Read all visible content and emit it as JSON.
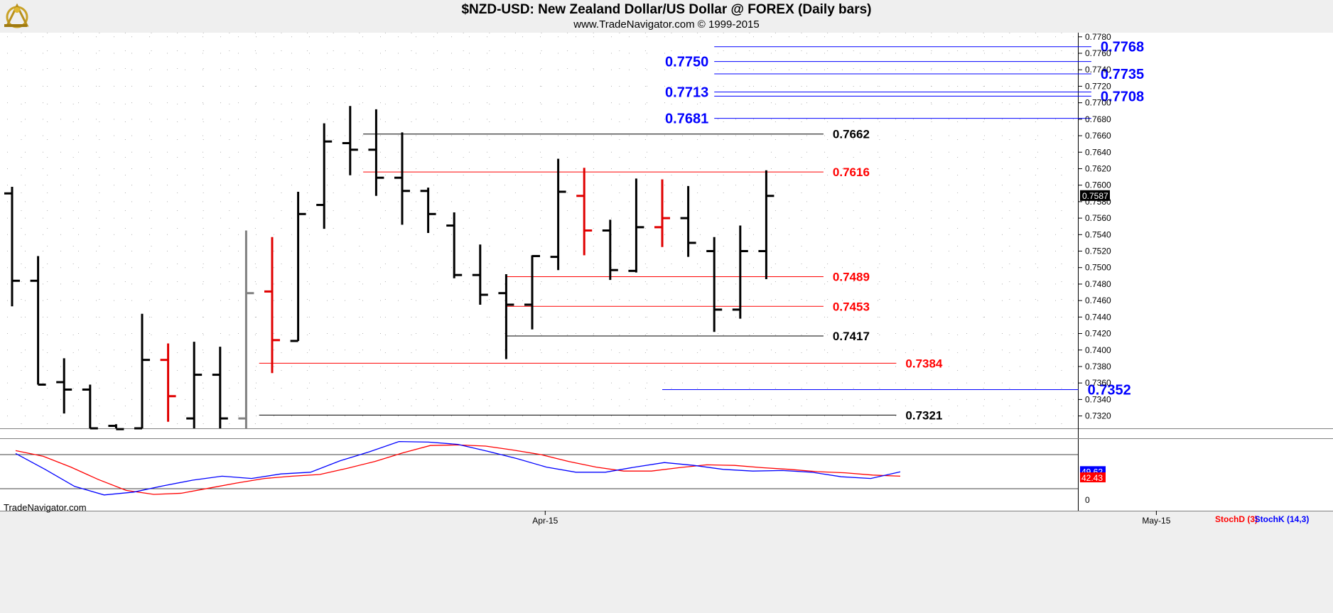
{
  "header": {
    "title": "$NZD-USD:  New Zealand Dollar/US Dollar @ FOREX  (Daily bars)",
    "subtitle": "www.TradeNavigator.com © 1999-2015",
    "watermark": "TradeNavigator.com"
  },
  "colors": {
    "up_bar": "#000000",
    "down_bar": "#e00000",
    "neutral_bar": "#808080",
    "fib_blue": "#0000ff",
    "support_red": "#ff0000",
    "level_black": "#000000",
    "stoch_d": "#ff0000",
    "stoch_k": "#0000ff",
    "grid": "#b0b0b0"
  },
  "chart_data": [
    {
      "type": "ohlc",
      "ylim": [
        0.7305,
        0.7785
      ],
      "y_ticks": [
        "0.7320",
        "0.7340",
        "0.7360",
        "0.7380",
        "0.7400",
        "0.7420",
        "0.7440",
        "0.7460",
        "0.7480",
        "0.7500",
        "0.7520",
        "0.7540",
        "0.7560",
        "0.7580",
        "0.7600",
        "0.7620",
        "0.7640",
        "0.7660",
        "0.7680",
        "0.7700",
        "0.7720",
        "0.7740",
        "0.7760",
        "0.7780"
      ],
      "x_ticks": [
        {
          "label": "Apr-15",
          "index": 20.5
        },
        {
          "label": "May-15",
          "index": 44
        }
      ],
      "last_price": "0.7587",
      "bars": [
        {
          "o": 0.759,
          "h": 0.7598,
          "l": 0.7453,
          "c": 0.7484,
          "col": "up"
        },
        {
          "o": 0.7484,
          "h": 0.7514,
          "l": 0.7358,
          "c": 0.7358,
          "col": "up"
        },
        {
          "o": 0.7361,
          "h": 0.739,
          "l": 0.7323,
          "c": 0.7352,
          "col": "up"
        },
        {
          "o": 0.7352,
          "h": 0.7358,
          "l": 0.7303,
          "c": 0.7305,
          "col": "up"
        },
        {
          "o": 0.7308,
          "h": 0.731,
          "l": 0.7303,
          "c": 0.7304,
          "col": "up"
        },
        {
          "o": 0.7305,
          "h": 0.7444,
          "l": 0.7303,
          "c": 0.7388,
          "col": "up"
        },
        {
          "o": 0.7388,
          "h": 0.7408,
          "l": 0.7313,
          "c": 0.7344,
          "col": "down"
        },
        {
          "o": 0.7317,
          "h": 0.741,
          "l": 0.7305,
          "c": 0.737,
          "col": "up"
        },
        {
          "o": 0.737,
          "h": 0.7404,
          "l": 0.7305,
          "c": 0.7317,
          "col": "up"
        },
        {
          "o": 0.7317,
          "h": 0.7545,
          "l": 0.7305,
          "c": 0.7469,
          "col": "neutral"
        },
        {
          "o": 0.7471,
          "h": 0.7537,
          "l": 0.7372,
          "c": 0.7412,
          "col": "down"
        },
        {
          "o": 0.7411,
          "h": 0.7592,
          "l": 0.7411,
          "c": 0.7565,
          "col": "up"
        },
        {
          "o": 0.7576,
          "h": 0.7675,
          "l": 0.7547,
          "c": 0.7653,
          "col": "up"
        },
        {
          "o": 0.7651,
          "h": 0.7696,
          "l": 0.7612,
          "c": 0.7643,
          "col": "up"
        },
        {
          "o": 0.7643,
          "h": 0.7692,
          "l": 0.7587,
          "c": 0.7609,
          "col": "up"
        },
        {
          "o": 0.7609,
          "h": 0.7664,
          "l": 0.7552,
          "c": 0.7593,
          "col": "up"
        },
        {
          "o": 0.7593,
          "h": 0.7597,
          "l": 0.7542,
          "c": 0.7565,
          "col": "up"
        },
        {
          "o": 0.7551,
          "h": 0.7567,
          "l": 0.7487,
          "c": 0.7491,
          "col": "up"
        },
        {
          "o": 0.7491,
          "h": 0.7528,
          "l": 0.7455,
          "c": 0.7467,
          "col": "up"
        },
        {
          "o": 0.7469,
          "h": 0.7492,
          "l": 0.7389,
          "c": 0.7455,
          "col": "up"
        },
        {
          "o": 0.7455,
          "h": 0.7515,
          "l": 0.7425,
          "c": 0.7514,
          "col": "up"
        },
        {
          "o": 0.7513,
          "h": 0.7632,
          "l": 0.7497,
          "c": 0.7592,
          "col": "up"
        },
        {
          "o": 0.7587,
          "h": 0.7621,
          "l": 0.7515,
          "c": 0.7545,
          "col": "down"
        },
        {
          "o": 0.7545,
          "h": 0.7558,
          "l": 0.7485,
          "c": 0.7497,
          "col": "up"
        },
        {
          "o": 0.7496,
          "h": 0.7608,
          "l": 0.7494,
          "c": 0.7549,
          "col": "up"
        },
        {
          "o": 0.7549,
          "h": 0.7607,
          "l": 0.7525,
          "c": 0.756,
          "col": "down"
        },
        {
          "o": 0.756,
          "h": 0.7599,
          "l": 0.7513,
          "c": 0.753,
          "col": "up"
        },
        {
          "o": 0.752,
          "h": 0.7537,
          "l": 0.7422,
          "c": 0.7449,
          "col": "up"
        },
        {
          "o": 0.7449,
          "h": 0.7551,
          "l": 0.7438,
          "c": 0.752,
          "col": "up"
        },
        {
          "o": 0.752,
          "h": 0.7618,
          "l": 0.7486,
          "c": 0.7587,
          "col": "up"
        }
      ],
      "levels": [
        {
          "label": "0.7768",
          "value": 0.7768,
          "from": 27,
          "to": 41.5,
          "color": "blue",
          "side": "right"
        },
        {
          "label": "0.7750",
          "value": 0.775,
          "from": 27,
          "to": 41.5,
          "color": "blue",
          "side": "left"
        },
        {
          "label": "0.7735",
          "value": 0.7735,
          "from": 27,
          "to": 41.5,
          "color": "blue",
          "side": "right"
        },
        {
          "label": "0.7713",
          "value": 0.7713,
          "from": 27,
          "to": 41.5,
          "color": "blue",
          "side": "left"
        },
        {
          "label": "0.7708",
          "value": 0.7708,
          "from": 27,
          "to": 41.5,
          "color": "blue",
          "side": "right"
        },
        {
          "label": "0.7681",
          "value": 0.7681,
          "from": 27,
          "to": 41.5,
          "color": "blue",
          "side": "left"
        },
        {
          "label": "0.7662",
          "value": 0.7662,
          "from": 13.5,
          "to": 31.2,
          "color": "black",
          "side": "right"
        },
        {
          "label": "0.7616",
          "value": 0.7616,
          "from": 13.5,
          "to": 31.2,
          "color": "red",
          "side": "right"
        },
        {
          "label": "0.7489",
          "value": 0.7489,
          "from": 19,
          "to": 31.2,
          "color": "red",
          "side": "right"
        },
        {
          "label": "0.7453",
          "value": 0.7453,
          "from": 19,
          "to": 31.2,
          "color": "red",
          "side": "right"
        },
        {
          "label": "0.7417",
          "value": 0.7417,
          "from": 19,
          "to": 31.2,
          "color": "black",
          "side": "right"
        },
        {
          "label": "0.7384",
          "value": 0.7384,
          "from": 9.5,
          "to": 34.0,
          "color": "red",
          "side": "right"
        },
        {
          "label": "0.7352",
          "value": 0.7352,
          "from": 25,
          "to": 41.0,
          "color": "blue",
          "side": "right"
        },
        {
          "label": "0.7321",
          "value": 0.7321,
          "from": 9.5,
          "to": 34.0,
          "color": "black",
          "side": "right"
        }
      ]
    },
    {
      "type": "line",
      "ylim": [
        0,
        100
      ],
      "y_ticks": [
        "0"
      ],
      "legend": [
        {
          "name": "StochD (3)",
          "color": "red"
        },
        {
          "name": "StochK (14,3)",
          "color": "blue"
        }
      ],
      "last_values": {
        "k": "49.62",
        "d": "42.43"
      },
      "series": [
        {
          "name": "StochD (3)",
          "color": "red",
          "values": [
            87,
            77,
            58,
            36,
            17,
            10,
            12,
            21,
            30,
            38,
            42,
            45,
            56,
            68,
            83,
            96,
            97,
            95,
            88,
            80,
            68,
            58,
            51,
            51,
            57,
            62,
            61,
            57,
            54,
            50,
            48,
            44,
            42
          ]
        },
        {
          "name": "StochK (14,3)",
          "color": "blue",
          "values": [
            82,
            54,
            24,
            9,
            14,
            25,
            35,
            42,
            38,
            46,
            49,
            69,
            85,
            103,
            102,
            98,
            86,
            73,
            58,
            49,
            49,
            58,
            66,
            61,
            54,
            51,
            52,
            49,
            41,
            38,
            49.62
          ]
        }
      ]
    }
  ]
}
